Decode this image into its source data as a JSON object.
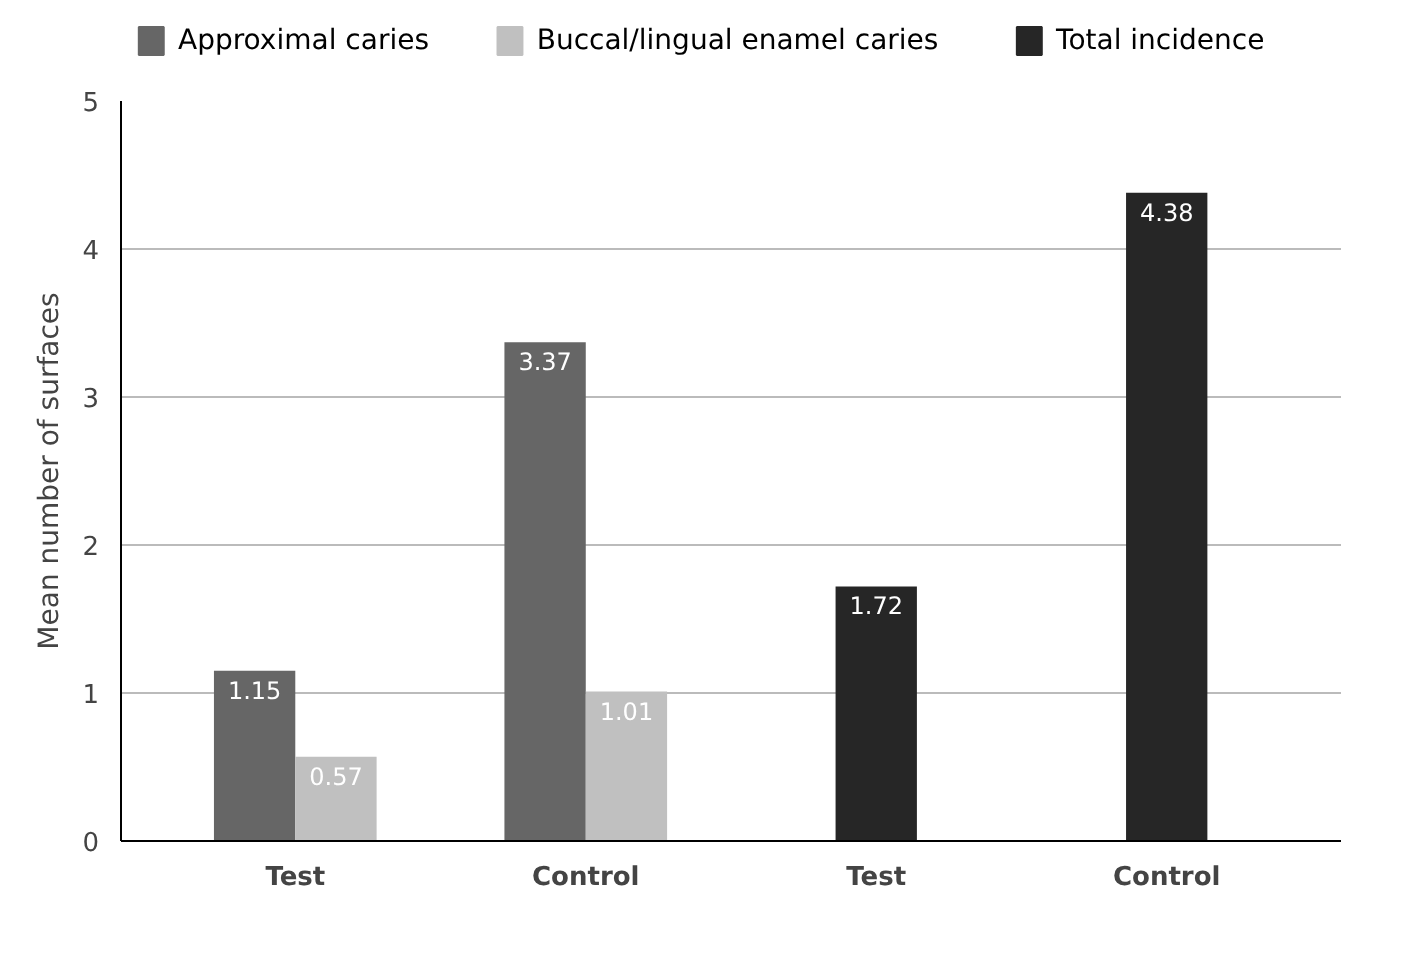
{
  "chart_data": {
    "type": "bar",
    "ylabel": "Mean number of surfaces",
    "categories": [
      "Test",
      "Control",
      "Test",
      "Control"
    ],
    "series": [
      {
        "name": "Approximal caries",
        "color": "#666666",
        "values": [
          1.15,
          3.37,
          null,
          null
        ]
      },
      {
        "name": "Buccal/lingual enamel caries",
        "color": "#c0c0c0",
        "values": [
          0.57,
          1.01,
          null,
          null
        ]
      },
      {
        "name": "Total incidence",
        "color": "#262626",
        "values": [
          null,
          null,
          1.72,
          4.38
        ]
      }
    ],
    "ylim": [
      0,
      5
    ],
    "yticks": [
      0,
      1,
      2,
      3,
      4,
      5
    ],
    "grid": "y",
    "legend": "top",
    "data_labels": true
  }
}
